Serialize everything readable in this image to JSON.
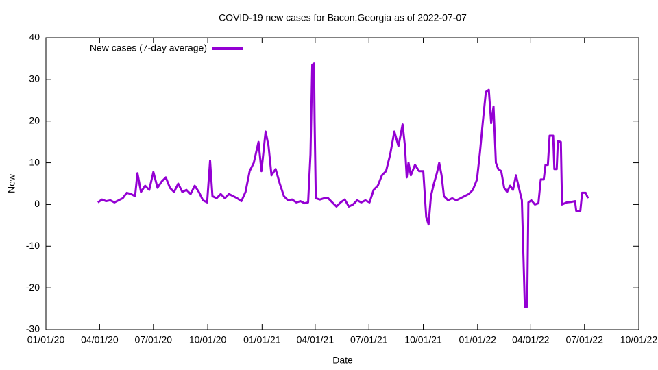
{
  "chart_data": {
    "type": "line",
    "title": "COVID-19 new cases for Bacon,Georgia as of 2022-07-07",
    "x_label": "Date",
    "y_label": "New",
    "xlim": [
      "2020-01-01",
      "2022-10-01"
    ],
    "xticks": [
      {
        "value": "2020-01-01",
        "label": "01/01/20"
      },
      {
        "value": "2020-04-01",
        "label": "04/01/20"
      },
      {
        "value": "2020-07-01",
        "label": "07/01/20"
      },
      {
        "value": "2020-10-01",
        "label": "10/01/20"
      },
      {
        "value": "2021-01-01",
        "label": "01/01/21"
      },
      {
        "value": "2021-04-01",
        "label": "04/01/21"
      },
      {
        "value": "2021-07-01",
        "label": "07/01/21"
      },
      {
        "value": "2021-10-01",
        "label": "10/01/21"
      },
      {
        "value": "2022-01-01",
        "label": "01/01/22"
      },
      {
        "value": "2022-04-01",
        "label": "04/01/22"
      },
      {
        "value": "2022-07-01",
        "label": "07/01/22"
      },
      {
        "value": "2022-10-01",
        "label": "10/01/22"
      }
    ],
    "ylim": [
      -30,
      40
    ],
    "yticks": [
      -30,
      -20,
      -10,
      0,
      10,
      20,
      30,
      40
    ],
    "legend": "upper left",
    "x": [
      "2020-03-29",
      "2020-04-05",
      "2020-04-12",
      "2020-04-19",
      "2020-04-26",
      "2020-05-03",
      "2020-05-10",
      "2020-05-17",
      "2020-05-24",
      "2020-05-31",
      "2020-06-04",
      "2020-06-10",
      "2020-06-17",
      "2020-06-24",
      "2020-07-01",
      "2020-07-08",
      "2020-07-15",
      "2020-07-22",
      "2020-07-29",
      "2020-08-05",
      "2020-08-12",
      "2020-08-19",
      "2020-08-26",
      "2020-09-02",
      "2020-09-09",
      "2020-09-16",
      "2020-09-23",
      "2020-09-30",
      "2020-10-05",
      "2020-10-09",
      "2020-10-16",
      "2020-10-23",
      "2020-10-30",
      "2020-11-06",
      "2020-11-13",
      "2020-11-20",
      "2020-11-27",
      "2020-12-04",
      "2020-12-11",
      "2020-12-18",
      "2020-12-26",
      "2020-12-31",
      "2021-01-07",
      "2021-01-12",
      "2021-01-17",
      "2021-01-24",
      "2021-01-31",
      "2021-02-07",
      "2021-02-14",
      "2021-02-21",
      "2021-02-28",
      "2021-03-07",
      "2021-03-14",
      "2021-03-20",
      "2021-03-24",
      "2021-03-27",
      "2021-03-30",
      "2021-03-31",
      "2021-04-02",
      "2021-04-09",
      "2021-04-16",
      "2021-04-23",
      "2021-04-30",
      "2021-05-07",
      "2021-05-14",
      "2021-05-21",
      "2021-05-28",
      "2021-06-04",
      "2021-06-11",
      "2021-06-18",
      "2021-06-25",
      "2021-07-02",
      "2021-07-09",
      "2021-07-16",
      "2021-07-23",
      "2021-07-30",
      "2021-08-06",
      "2021-08-13",
      "2021-08-20",
      "2021-08-27",
      "2021-08-31",
      "2021-09-03",
      "2021-09-06",
      "2021-09-10",
      "2021-09-17",
      "2021-09-24",
      "2021-10-01",
      "2021-10-06",
      "2021-10-10",
      "2021-10-14",
      "2021-10-19",
      "2021-10-24",
      "2021-10-28",
      "2021-11-01",
      "2021-11-05",
      "2021-11-12",
      "2021-11-19",
      "2021-11-26",
      "2021-12-03",
      "2021-12-10",
      "2021-12-17",
      "2021-12-24",
      "2021-12-31",
      "2022-01-05",
      "2022-01-10",
      "2022-01-15",
      "2022-01-20",
      "2022-01-24",
      "2022-01-28",
      "2022-02-01",
      "2022-02-05",
      "2022-02-10",
      "2022-02-15",
      "2022-02-20",
      "2022-02-25",
      "2022-03-02",
      "2022-03-07",
      "2022-03-12",
      "2022-03-17",
      "2022-03-22",
      "2022-03-26",
      "2022-03-28",
      "2022-04-02",
      "2022-04-08",
      "2022-04-14",
      "2022-04-18",
      "2022-04-23",
      "2022-04-26",
      "2022-04-30",
      "2022-05-03",
      "2022-05-09",
      "2022-05-11",
      "2022-05-15",
      "2022-05-17",
      "2022-05-22",
      "2022-05-24",
      "2022-06-01",
      "2022-06-08",
      "2022-06-15",
      "2022-06-17",
      "2022-06-24",
      "2022-06-27",
      "2022-07-03",
      "2022-07-07"
    ],
    "series": [
      {
        "name": "New cases (7-day average)",
        "color": "#9400d3",
        "values": [
          0.5,
          1.2,
          0.8,
          1,
          0.5,
          1,
          1.5,
          2.8,
          2.5,
          2,
          7.5,
          3,
          4.5,
          3.5,
          7.8,
          4,
          5.5,
          6.5,
          4,
          3,
          5,
          3,
          3.5,
          2.5,
          4.5,
          3,
          1,
          0.5,
          10.5,
          2,
          1.5,
          2.5,
          1.5,
          2.5,
          2,
          1.5,
          0.8,
          3,
          8,
          10,
          15,
          8,
          17.5,
          14,
          7,
          8.5,
          5,
          2,
          1,
          1.2,
          0.5,
          0.8,
          0.3,
          0.5,
          12,
          33.5,
          33.8,
          20,
          1.5,
          1.2,
          1.5,
          1.5,
          0.5,
          -0.5,
          0.5,
          1.2,
          -0.5,
          0,
          1,
          0.5,
          1,
          0.5,
          3.5,
          4.5,
          7,
          8,
          12,
          17.5,
          14,
          19.2,
          14,
          6.5,
          10,
          7,
          9.5,
          8,
          8,
          -3,
          -4.8,
          2,
          5,
          7.5,
          10,
          7,
          2,
          1,
          1.5,
          1,
          1.5,
          2,
          2.5,
          3.5,
          6,
          12.5,
          20,
          27,
          27.5,
          19.5,
          23.5,
          10,
          8.5,
          8,
          4,
          3,
          4.5,
          3.5,
          7,
          4,
          1,
          -24.5,
          -24.5,
          0.5,
          1,
          0,
          0.3,
          6,
          6,
          9.5,
          9.5,
          16.5,
          16.5,
          8.5,
          8.5,
          15.2,
          15,
          0,
          0.5,
          0.6,
          0.8,
          -1.5,
          -1.5,
          2.8,
          2.8,
          1.5
        ]
      }
    ]
  }
}
